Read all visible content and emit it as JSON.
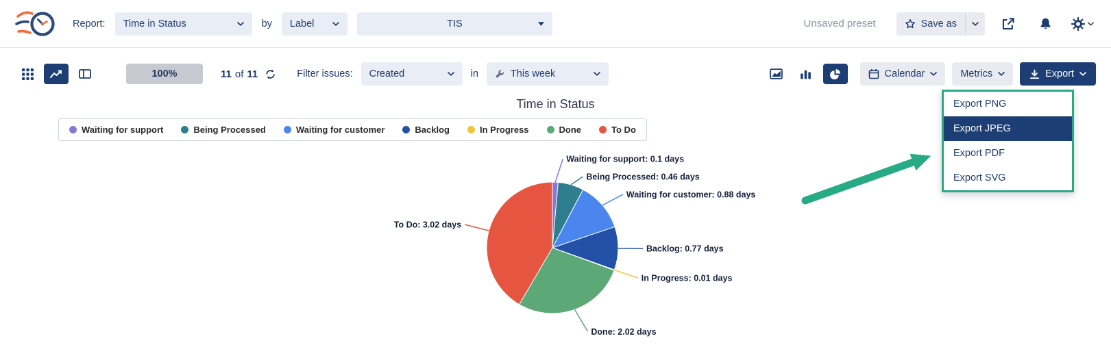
{
  "header": {
    "report_label": "Report:",
    "report_type": "Time in Status",
    "by_label": "by",
    "group_by": "Label",
    "scope": "TIS",
    "unsaved_preset": "Unsaved preset",
    "save_as_label": "Save as"
  },
  "toolbar": {
    "zoom_level": "100%",
    "count": {
      "shown": "11",
      "of_label": "of",
      "total": "11"
    },
    "filter_label": "Filter issues:",
    "filter_field": "Created",
    "in_label": "in",
    "filter_range": "This week",
    "selected_view": "line-chart",
    "selected_chart_type": "pie",
    "calendar_label": "Calendar",
    "metrics_label": "Metrics",
    "export_label": "Export"
  },
  "export_menu": {
    "items": [
      {
        "label": "Export PNG",
        "selected": false
      },
      {
        "label": "Export JPEG",
        "selected": true
      },
      {
        "label": "Export PDF",
        "selected": false
      },
      {
        "label": "Export SVG",
        "selected": false
      }
    ]
  },
  "chart_data": {
    "type": "pie",
    "title": "Time in Status",
    "unit": "days",
    "legend_position": "top",
    "slices": [
      {
        "label": "Waiting for support",
        "value": 0.1,
        "color": "#8777d9"
      },
      {
        "label": "Being Processed",
        "value": 0.46,
        "color": "#2e7e8e"
      },
      {
        "label": "Waiting for customer",
        "value": 0.88,
        "color": "#4a86ee"
      },
      {
        "label": "Backlog",
        "value": 0.77,
        "color": "#2351a8"
      },
      {
        "label": "In Progress",
        "value": 0.01,
        "color": "#eec53d"
      },
      {
        "label": "Done",
        "value": 2.02,
        "color": "#5ca877"
      },
      {
        "label": "To Do",
        "value": 3.02,
        "color": "#e65540"
      }
    ]
  },
  "colors": {
    "primary_navy": "#1d3e75",
    "annotation_teal": "#27aa86",
    "control_bg": "#e9edf5",
    "muted_text": "#8b94a5"
  },
  "icons": {
    "app-logo-icon": "stopwatch-with-speed-lines",
    "grid-view-icon": "grid",
    "line-chart-view-icon": "trend-line",
    "board-view-icon": "split-panel",
    "refresh-icon": "circular-arrows",
    "wrench-icon": "wrench",
    "area-chart-icon": "area-chart",
    "bar-chart-icon": "bar-chart",
    "pie-chart-icon": "pie-chart",
    "calendar-icon": "calendar",
    "star-icon": "star-outline",
    "share-icon": "arrow-out-of-box",
    "bell-icon": "bell",
    "gear-icon": "gear",
    "download-icon": "down-arrow-tray",
    "chevron-down-icon": "chevron-down"
  }
}
